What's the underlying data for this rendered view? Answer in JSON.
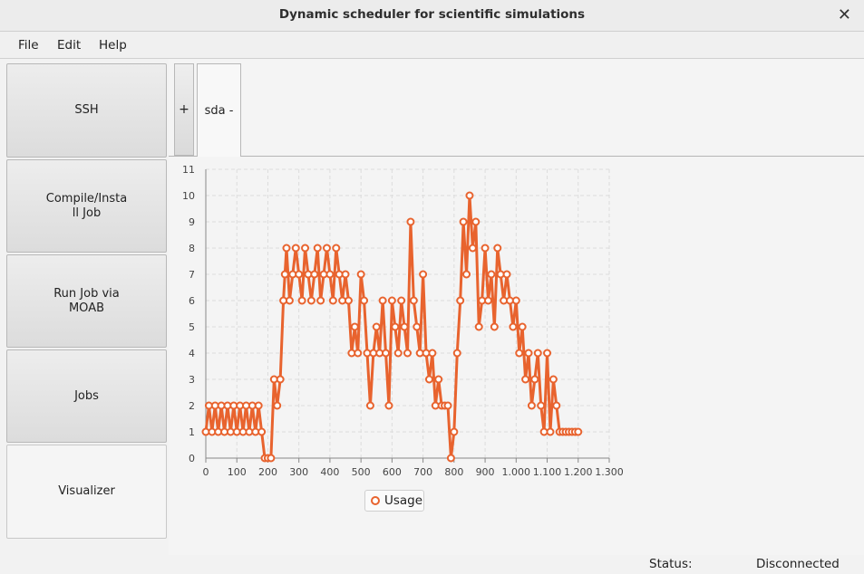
{
  "window": {
    "title": "Dynamic scheduler for scientific simulations"
  },
  "menu": {
    "items": [
      "File",
      "Edit",
      "Help"
    ]
  },
  "sidebar": {
    "buttons": [
      {
        "label": "SSH"
      },
      {
        "label": "Compile/Insta\nll Job"
      },
      {
        "label": "Run Job via\nMOAB"
      },
      {
        "label": "Jobs"
      },
      {
        "label": "Visualizer"
      }
    ]
  },
  "tabs": {
    "add_label": "+",
    "items": [
      {
        "label": "sda -"
      }
    ]
  },
  "status": {
    "label": "Status:",
    "value": "Disconnected"
  },
  "colors": {
    "series": "#e8632e"
  },
  "chart_data": {
    "type": "line",
    "title": "",
    "xlabel": "",
    "ylabel": "",
    "xlim": [
      0,
      1300
    ],
    "ylim": [
      0,
      11
    ],
    "xticks": [
      "0",
      "100",
      "200",
      "300",
      "400",
      "500",
      "600",
      "700",
      "800",
      "900",
      "1.000",
      "1.100",
      "1.200",
      "1.300"
    ],
    "yticks": [
      "0",
      "1",
      "2",
      "3",
      "4",
      "5",
      "6",
      "7",
      "8",
      "9",
      "10",
      "11"
    ],
    "grid": true,
    "legend_position": "bottom",
    "series": [
      {
        "name": "Usage",
        "x": [
          0,
          10,
          20,
          30,
          40,
          50,
          60,
          70,
          80,
          90,
          100,
          110,
          120,
          130,
          140,
          150,
          160,
          170,
          180,
          190,
          200,
          210,
          220,
          230,
          240,
          250,
          255,
          260,
          270,
          280,
          290,
          300,
          310,
          320,
          330,
          340,
          350,
          360,
          370,
          380,
          390,
          400,
          410,
          420,
          430,
          440,
          450,
          460,
          470,
          480,
          490,
          500,
          510,
          520,
          530,
          540,
          550,
          560,
          570,
          580,
          590,
          600,
          610,
          620,
          630,
          640,
          650,
          660,
          670,
          680,
          690,
          700,
          710,
          720,
          730,
          740,
          750,
          760,
          770,
          780,
          790,
          800,
          810,
          820,
          830,
          840,
          850,
          860,
          870,
          880,
          890,
          900,
          910,
          920,
          930,
          940,
          950,
          960,
          970,
          980,
          990,
          1000,
          1010,
          1020,
          1030,
          1040,
          1050,
          1060,
          1070,
          1080,
          1090,
          1100,
          1110,
          1120,
          1130,
          1140,
          1150,
          1160,
          1170,
          1180,
          1190,
          1200
        ],
        "y": [
          1,
          2,
          1,
          2,
          1,
          2,
          1,
          2,
          1,
          2,
          1,
          2,
          1,
          2,
          1,
          2,
          1,
          2,
          1,
          0,
          0,
          0,
          3,
          2,
          3,
          6,
          7,
          8,
          6,
          7,
          8,
          7,
          6,
          8,
          7,
          6,
          7,
          8,
          6,
          7,
          8,
          7,
          6,
          8,
          7,
          6,
          7,
          6,
          4,
          5,
          4,
          7,
          6,
          4,
          2,
          4,
          5,
          4,
          6,
          4,
          2,
          6,
          5,
          4,
          6,
          5,
          4,
          9,
          6,
          5,
          4,
          7,
          4,
          3,
          4,
          2,
          3,
          2,
          2,
          2,
          0,
          1,
          4,
          6,
          9,
          7,
          10,
          8,
          9,
          5,
          6,
          8,
          6,
          7,
          5,
          8,
          7,
          6,
          7,
          6,
          5,
          6,
          4,
          5,
          3,
          4,
          2,
          3,
          4,
          2,
          1,
          4,
          1,
          3,
          2,
          1,
          1,
          1,
          1,
          1,
          1,
          1
        ],
        "color": "#e8632e"
      }
    ]
  }
}
